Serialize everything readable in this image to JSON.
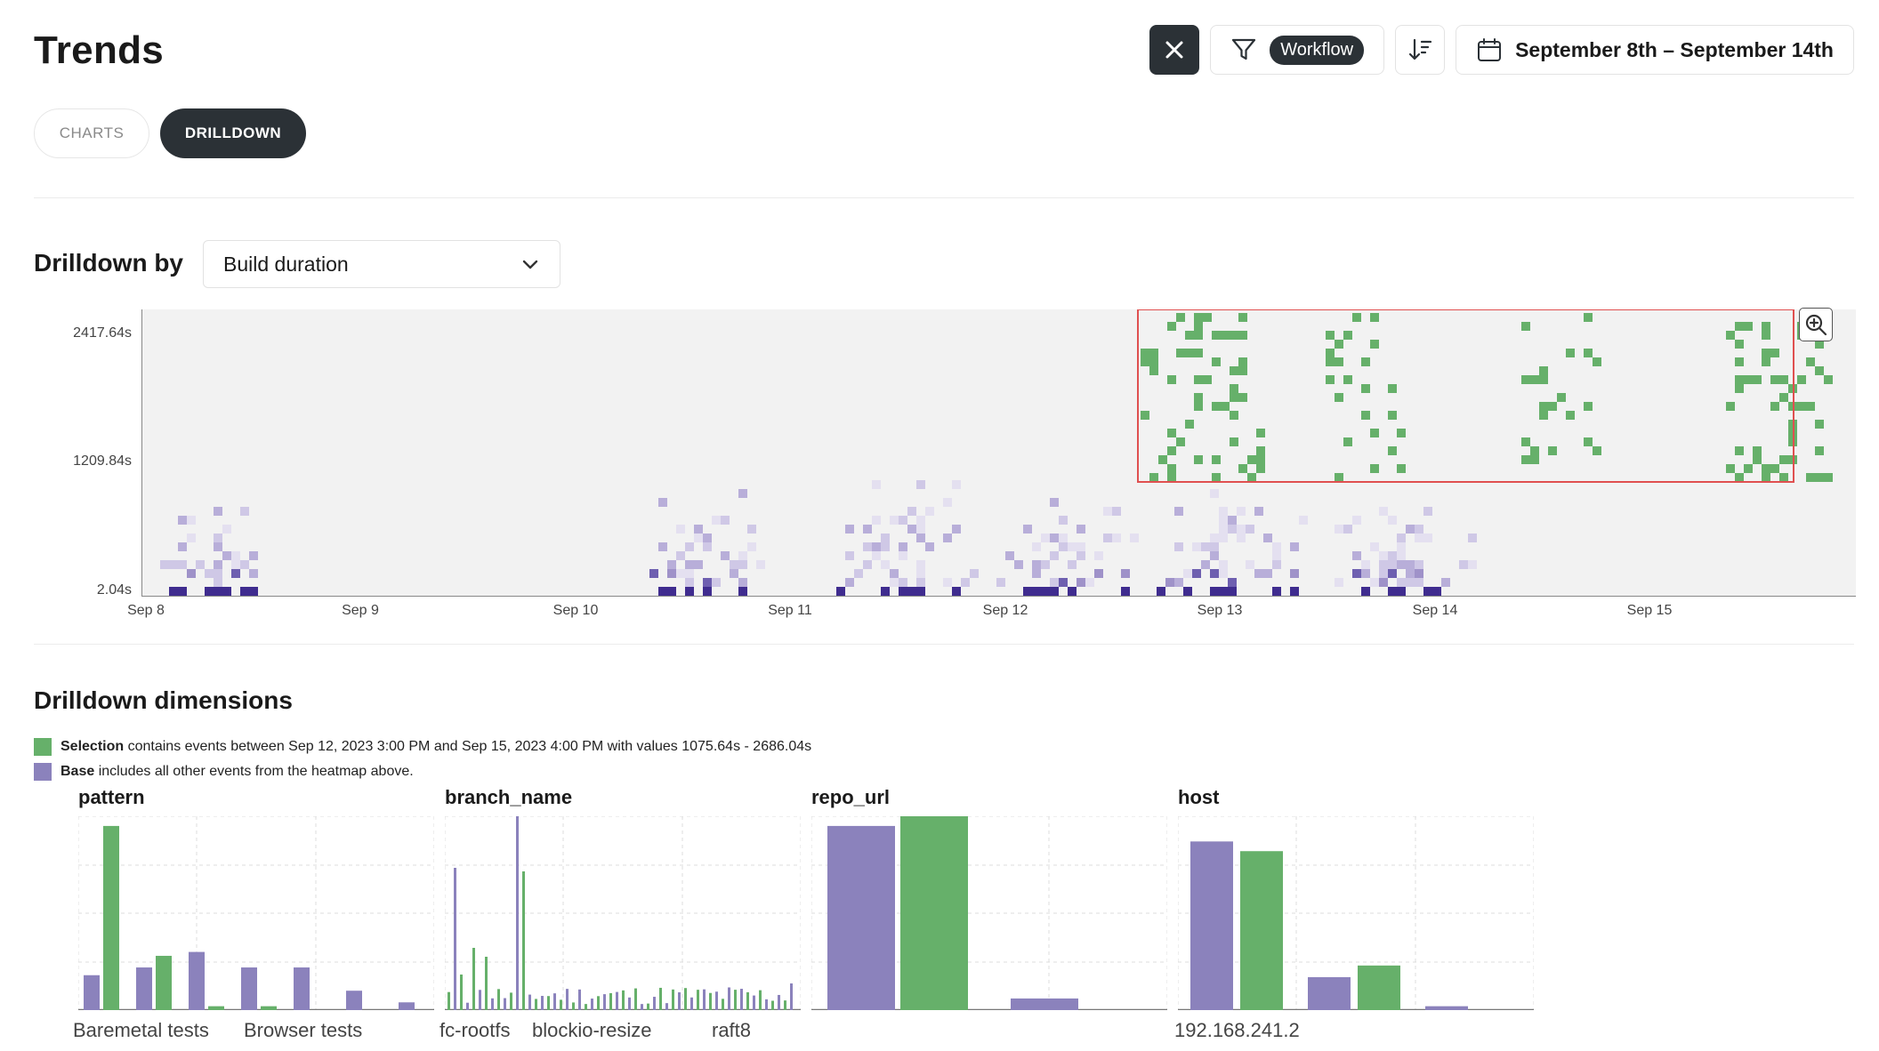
{
  "header": {
    "title": "Trends",
    "filter_pill": "Workflow",
    "date_range": "September 8th – September 14th"
  },
  "tabs": [
    {
      "label": "CHARTS",
      "active": false
    },
    {
      "label": "DRILLDOWN",
      "active": true
    }
  ],
  "drilldown": {
    "label": "Drilldown by",
    "selected": "Build duration"
  },
  "heatmap": {
    "y_ticks": [
      "2417.64s",
      "1209.84s",
      "2.04s"
    ],
    "x_ticks": [
      "Sep 8",
      "Sep 9",
      "Sep 10",
      "Sep 11",
      "Sep 12",
      "Sep 13",
      "Sep 14",
      "Sep 15"
    ],
    "colors": {
      "selection": "#66b06a",
      "base_light": "#d9d4ea",
      "base_dark": "#3f2c8f",
      "selection_box": "#e05050"
    }
  },
  "dimensions": {
    "title": "Drilldown dimensions",
    "legend_selection_bold": "Selection",
    "legend_selection_text": "contains events between Sep 12, 2023 3:00 PM and Sep 15, 2023 4:00 PM with values 1075.64s - 2686.04s",
    "legend_base_bold": "Base",
    "legend_base_text": "includes all other events from the heatmap above.",
    "colors": {
      "selection": "#66b06a",
      "base": "#8b82bc"
    },
    "charts": [
      {
        "title": "pattern",
        "labels": [
          "Baremetal tests",
          "Browser tests"
        ],
        "bars": [
          {
            "base": 18,
            "sel": 95
          },
          {
            "base": 22,
            "sel": 28
          },
          {
            "base": 30,
            "sel": 2
          },
          {
            "base": 22,
            "sel": 2
          },
          {
            "base": 22,
            "sel": 0
          },
          {
            "base": 10,
            "sel": 0
          },
          {
            "base": 4,
            "sel": 0
          }
        ]
      },
      {
        "title": "branch_name",
        "labels": [
          "fc-rootfs",
          "blockio-resize",
          "raft8"
        ]
      },
      {
        "title": "repo_url",
        "labels": [],
        "bars": [
          {
            "base": 95,
            "sel": 100
          },
          {
            "base": 6,
            "sel": 0
          }
        ]
      },
      {
        "title": "host",
        "labels": [
          "192.168.241.2"
        ],
        "bars": [
          {
            "base": 87,
            "sel": 82
          },
          {
            "base": 17,
            "sel": 23
          },
          {
            "base": 2,
            "sel": 0
          }
        ]
      }
    ]
  }
}
